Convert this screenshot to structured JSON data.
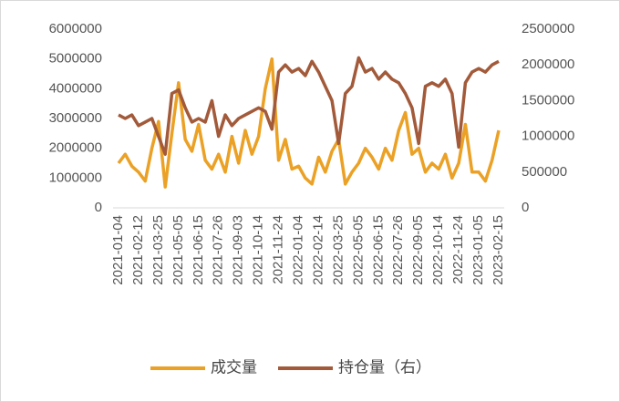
{
  "chart_data": {
    "type": "line",
    "categories": [
      "2021-01-04",
      null,
      null,
      "2021-02-12",
      null,
      null,
      "2021-03-25",
      null,
      null,
      "2021-05-05",
      null,
      null,
      "2021-06-15",
      null,
      null,
      "2021-07-26",
      null,
      null,
      "2021-09-03",
      null,
      null,
      "2021-10-14",
      null,
      null,
      "2021-11-24",
      null,
      null,
      "2022-01-04",
      null,
      null,
      "2022-02-14",
      null,
      null,
      "2022-03-25",
      null,
      null,
      "2022-05-05",
      null,
      null,
      "2022-06-15",
      null,
      null,
      "2022-07-26",
      null,
      null,
      "2022-09-05",
      null,
      null,
      "2022-10-14",
      null,
      null,
      "2022-11-24",
      null,
      null,
      "2023-01-05",
      null,
      null,
      "2023-02-15"
    ],
    "series": [
      {
        "name": "成交量",
        "color": "#eba125",
        "values": [
          1500000,
          1800000,
          1400000,
          1200000,
          900000,
          2000000,
          2900000,
          700000,
          2500000,
          4200000,
          2300000,
          1900000,
          2800000,
          1600000,
          1300000,
          1800000,
          1200000,
          2400000,
          1500000,
          2600000,
          1800000,
          2400000,
          4000000,
          5000000,
          1600000,
          2300000,
          1300000,
          1400000,
          1000000,
          800000,
          1700000,
          1200000,
          1900000,
          2300000,
          800000,
          1200000,
          1500000,
          2000000,
          1700000,
          1300000,
          2000000,
          1600000,
          2600000,
          3200000,
          1800000,
          2000000,
          1200000,
          1500000,
          1300000,
          1800000,
          1000000,
          1500000,
          2800000,
          1200000,
          1200000,
          900000,
          1600000,
          2600000
        ]
      },
      {
        "name": "持仓量（右）",
        "color": "#a25a3a",
        "axis": "y2",
        "values": [
          1300000,
          1250000,
          1300000,
          1150000,
          1200000,
          1250000,
          1000000,
          750000,
          1600000,
          1650000,
          1400000,
          1200000,
          1250000,
          1200000,
          1500000,
          1000000,
          1300000,
          1150000,
          1250000,
          1300000,
          1350000,
          1400000,
          1350000,
          1100000,
          1900000,
          2000000,
          1900000,
          1950000,
          1850000,
          2050000,
          1900000,
          1700000,
          1500000,
          900000,
          1600000,
          1700000,
          2100000,
          1900000,
          1950000,
          1800000,
          1900000,
          1800000,
          1750000,
          1600000,
          1400000,
          900000,
          1700000,
          1750000,
          1700000,
          1800000,
          1600000,
          850000,
          1750000,
          1900000,
          1950000,
          1900000,
          2000000,
          2050000
        ]
      }
    ],
    "ylim": [
      0,
      6000000
    ],
    "yticks": [
      0,
      1000000,
      2000000,
      3000000,
      4000000,
      5000000,
      6000000
    ],
    "y2lim": [
      0,
      2500000
    ],
    "y2ticks": [
      0,
      500000,
      1000000,
      1500000,
      2000000,
      2500000
    ],
    "legend": "bottom"
  }
}
